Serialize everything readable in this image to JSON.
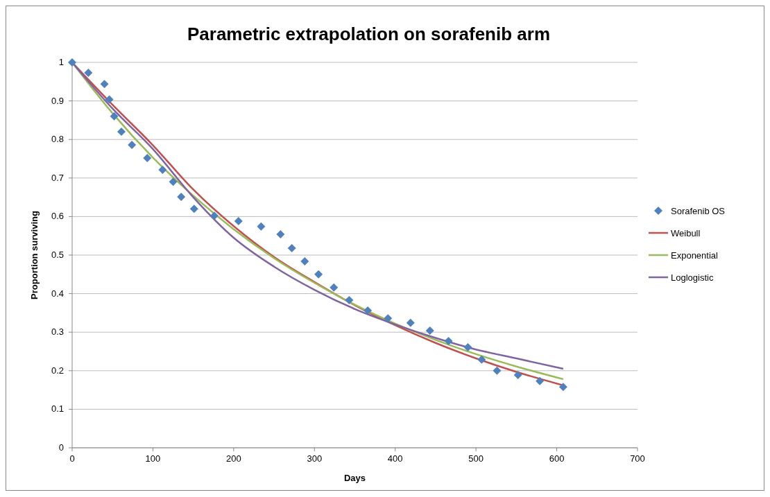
{
  "chart_data": {
    "type": "line",
    "title": "Parametric extrapolation on sorafenib arm",
    "xlabel": "Days",
    "ylabel": "Proportion surviving",
    "xlim": [
      0,
      700
    ],
    "xticks": [
      0,
      100,
      200,
      300,
      400,
      500,
      600,
      700
    ],
    "ylim": [
      0,
      1
    ],
    "yticks": [
      0,
      0.1,
      0.2,
      0.3,
      0.4,
      0.5,
      0.6,
      0.7,
      0.8,
      0.9,
      1
    ],
    "grid": "y",
    "legend": "right",
    "series": [
      {
        "name": "Sorafenib OS",
        "type": "scatter",
        "marker": "diamond",
        "color": "#4f81bd",
        "x": [
          0,
          20,
          40,
          46,
          52,
          61,
          74,
          93,
          112,
          125,
          135,
          151,
          176,
          206,
          234,
          258,
          272,
          288,
          305,
          324,
          343,
          366,
          391,
          419,
          443,
          466,
          490,
          507,
          526,
          552,
          579,
          608
        ],
        "values": [
          1,
          0.973,
          0.944,
          0.904,
          0.86,
          0.82,
          0.786,
          0.752,
          0.721,
          0.69,
          0.651,
          0.62,
          0.602,
          0.588,
          0.574,
          0.554,
          0.518,
          0.484,
          0.45,
          0.416,
          0.383,
          0.356,
          0.336,
          0.324,
          0.304,
          0.277,
          0.261,
          0.229,
          0.2,
          0.189,
          0.173,
          0.158
        ]
      },
      {
        "name": "Weibull",
        "marker": "none",
        "color": "#c0504d",
        "x": [
          0,
          50,
          100,
          150,
          200,
          250,
          300,
          350,
          400,
          450,
          500,
          550,
          608
        ],
        "values": [
          1,
          0.89,
          0.785,
          0.67,
          0.575,
          0.495,
          0.43,
          0.37,
          0.318,
          0.272,
          0.232,
          0.197,
          0.162
        ]
      },
      {
        "name": "Exponential",
        "marker": "none",
        "color": "#9bbb59",
        "x": [
          0,
          50,
          100,
          150,
          200,
          250,
          300,
          350,
          400,
          450,
          500,
          550,
          608
        ],
        "values": [
          1,
          0.868,
          0.753,
          0.654,
          0.567,
          0.492,
          0.428,
          0.371,
          0.322,
          0.28,
          0.243,
          0.211,
          0.178
        ]
      },
      {
        "name": "Loglogistic",
        "marker": "none",
        "color": "#8064a2",
        "x": [
          0,
          50,
          100,
          150,
          200,
          250,
          300,
          350,
          400,
          450,
          500,
          550,
          608
        ],
        "values": [
          1,
          0.88,
          0.775,
          0.65,
          0.545,
          0.47,
          0.41,
          0.36,
          0.32,
          0.285,
          0.255,
          0.232,
          0.205
        ]
      }
    ]
  }
}
